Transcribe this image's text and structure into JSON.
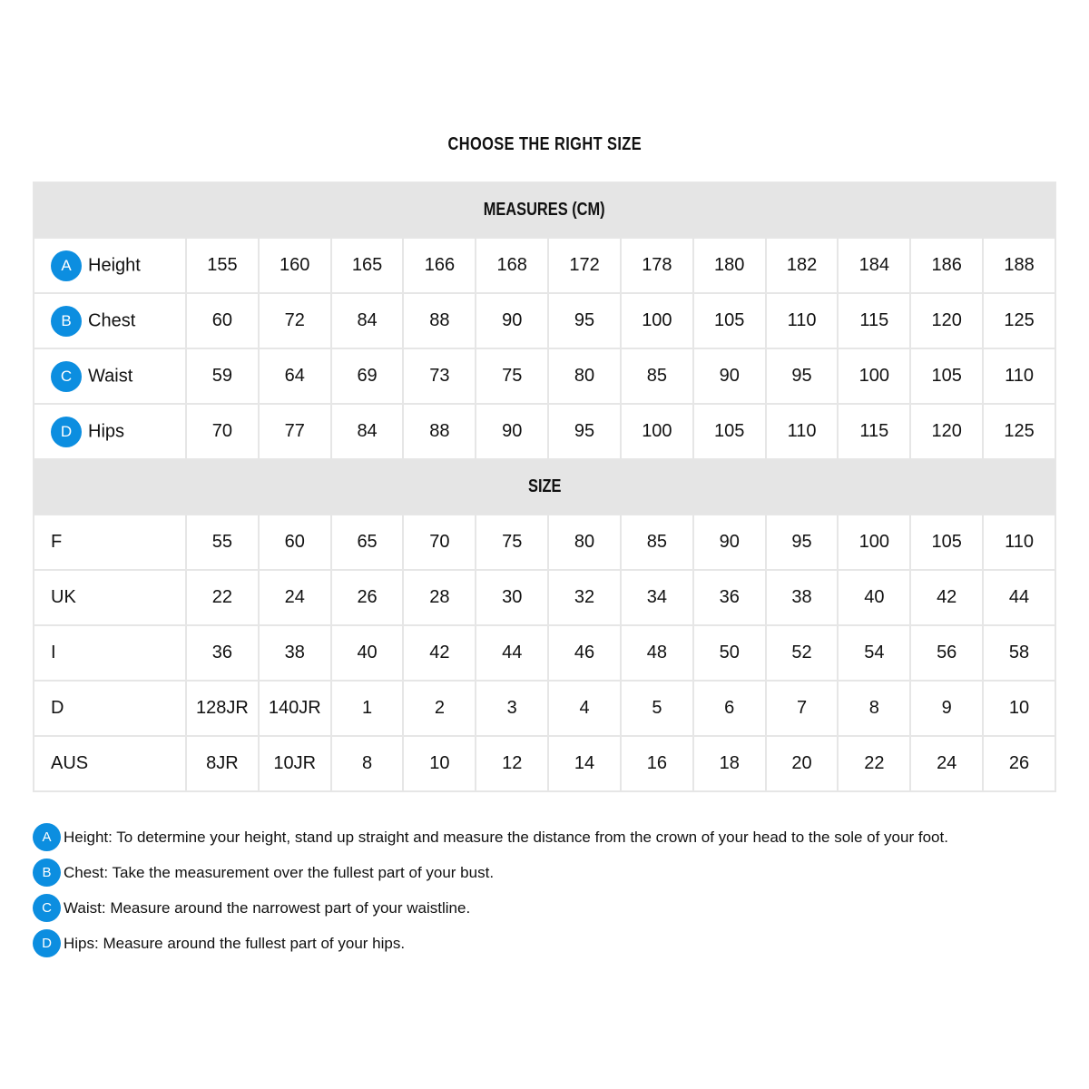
{
  "title": "CHOOSE THE RIGHT SIZE",
  "badge_color": "#0c8ee0",
  "measures": {
    "heading": "MEASURES (CM)",
    "rows": [
      {
        "badge": "A",
        "label": "Height",
        "values": [
          "155",
          "160",
          "165",
          "166",
          "168",
          "172",
          "178",
          "180",
          "182",
          "184",
          "186",
          "188"
        ]
      },
      {
        "badge": "B",
        "label": "Chest",
        "values": [
          "60",
          "72",
          "84",
          "88",
          "90",
          "95",
          "100",
          "105",
          "110",
          "115",
          "120",
          "125"
        ]
      },
      {
        "badge": "C",
        "label": "Waist",
        "values": [
          "59",
          "64",
          "69",
          "73",
          "75",
          "80",
          "85",
          "90",
          "95",
          "100",
          "105",
          "110"
        ]
      },
      {
        "badge": "D",
        "label": "Hips",
        "values": [
          "70",
          "77",
          "84",
          "88",
          "90",
          "95",
          "100",
          "105",
          "110",
          "115",
          "120",
          "125"
        ]
      }
    ]
  },
  "sizes": {
    "heading": "SIZE",
    "rows": [
      {
        "label": "F",
        "values": [
          "55",
          "60",
          "65",
          "70",
          "75",
          "80",
          "85",
          "90",
          "95",
          "100",
          "105",
          "110"
        ]
      },
      {
        "label": "UK",
        "values": [
          "22",
          "24",
          "26",
          "28",
          "30",
          "32",
          "34",
          "36",
          "38",
          "40",
          "42",
          "44"
        ]
      },
      {
        "label": "I",
        "values": [
          "36",
          "38",
          "40",
          "42",
          "44",
          "46",
          "48",
          "50",
          "52",
          "54",
          "56",
          "58"
        ]
      },
      {
        "label": "D",
        "values": [
          "128JR",
          "140JR",
          "1",
          "2",
          "3",
          "4",
          "5",
          "6",
          "7",
          "8",
          "9",
          "10"
        ]
      },
      {
        "label": "AUS",
        "values": [
          "8JR",
          "10JR",
          "8",
          "10",
          "12",
          "14",
          "16",
          "18",
          "20",
          "22",
          "24",
          "26"
        ]
      }
    ]
  },
  "notes": [
    {
      "badge": "A",
      "text": "Height: To determine your height, stand up straight and measure the distance from the crown of your head to the sole of your foot."
    },
    {
      "badge": "B",
      "text": "Chest: Take the measurement over the fullest part of your bust."
    },
    {
      "badge": "C",
      "text": "Waist: Measure around the narrowest part of your waistline."
    },
    {
      "badge": "D",
      "text": "Hips: Measure around the fullest part of your hips."
    }
  ]
}
